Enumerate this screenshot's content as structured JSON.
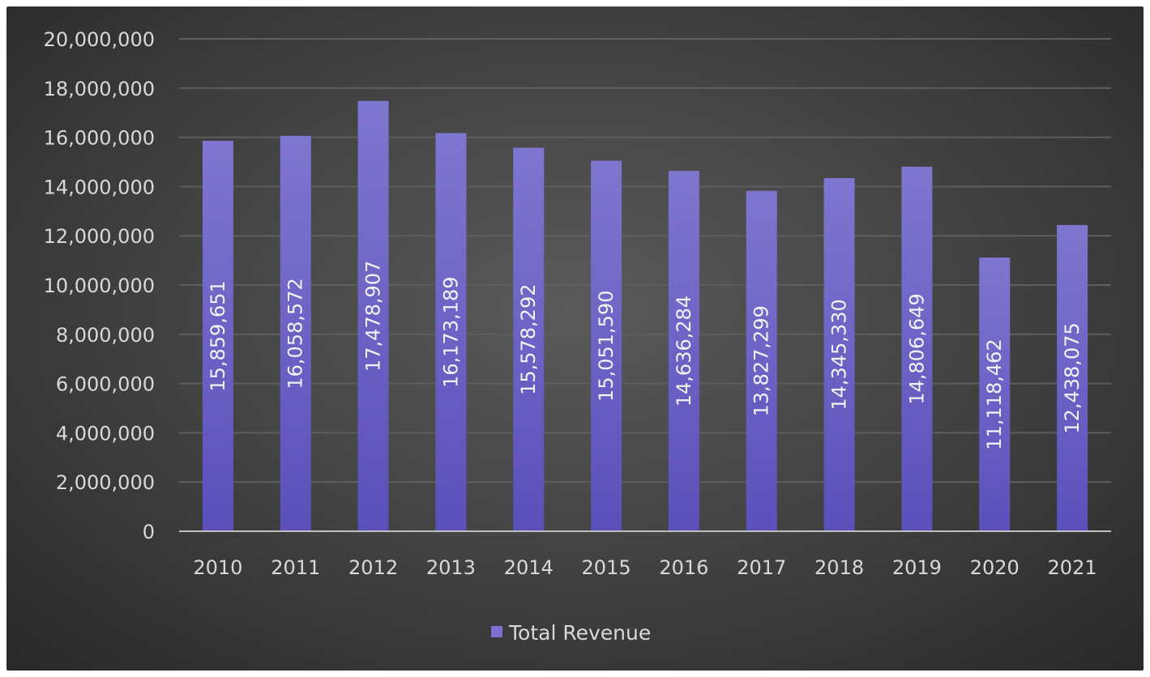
{
  "chart_data": {
    "type": "bar",
    "categories": [
      "2010",
      "2011",
      "2012",
      "2013",
      "2014",
      "2015",
      "2016",
      "2017",
      "2018",
      "2019",
      "2020",
      "2021"
    ],
    "series": [
      {
        "name": "Total Revenue",
        "color": "#7b6fcf",
        "values": [
          15859651,
          16058572,
          17478907,
          16173189,
          15578292,
          15051590,
          14636284,
          13827299,
          14345330,
          14806649,
          11118462,
          12438075
        ],
        "labels": [
          "15,859,651",
          "16,058,572",
          "17,478,907",
          "16,173,189",
          "15,578,292",
          "15,051,590",
          "14,636,284",
          "13,827,299",
          "14,345,330",
          "14,806,649",
          "11,118,462",
          "12,438,075"
        ]
      }
    ],
    "y_ticks": [
      "0",
      "2,000,000",
      "4,000,000",
      "6,000,000",
      "8,000,000",
      "10,000,000",
      "12,000,000",
      "14,000,000",
      "16,000,000",
      "18,000,000",
      "20,000,000"
    ],
    "ylim": [
      0,
      20000000
    ],
    "grid": true,
    "legend": "bottom",
    "colors": {
      "background": "#454545",
      "bar_top": "#7f76cf",
      "bar_bottom": "#5b4fba",
      "gridline": "#5e5e5e",
      "axis": "#bfbfbf",
      "text": "#d9d9d9"
    }
  }
}
